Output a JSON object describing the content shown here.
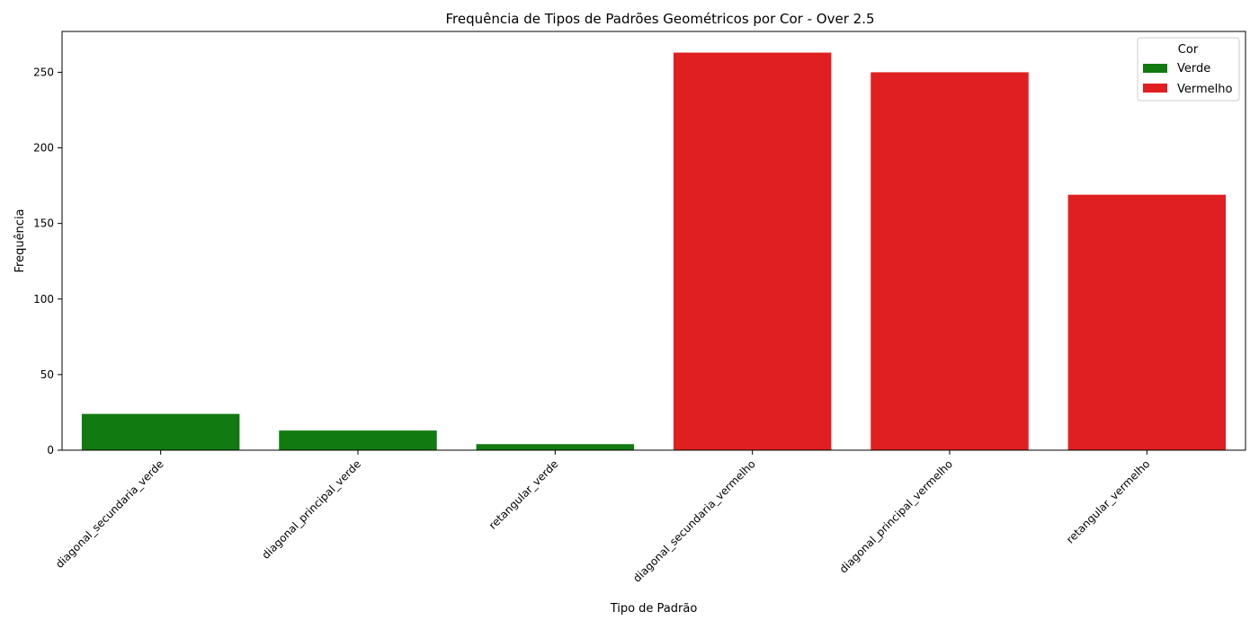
{
  "chart_data": {
    "type": "bar",
    "title": "Frequência de Tipos de Padrões Geométricos por Cor - Over 2.5",
    "xlabel": "Tipo de Padrão",
    "ylabel": "Frequência",
    "ylim": [
      0,
      277
    ],
    "yticks": [
      0,
      50,
      100,
      150,
      200,
      250
    ],
    "categories": [
      "diagonal_secundaria_verde",
      "diagonal_principal_verde",
      "retangular_verde",
      "diagonal_secundaria_vermelho",
      "diagonal_principal_vermelho",
      "retangular_vermelho"
    ],
    "values": [
      24,
      13,
      4,
      263,
      250,
      169
    ],
    "bar_groups": [
      "Verde",
      "Verde",
      "Verde",
      "Vermelho",
      "Vermelho",
      "Vermelho"
    ],
    "legend": {
      "title": "Cor",
      "placement": "top-right",
      "entries": [
        {
          "label": "Verde",
          "color": "#117a11"
        },
        {
          "label": "Vermelho",
          "color": "#e02020"
        }
      ]
    },
    "grid": false
  }
}
